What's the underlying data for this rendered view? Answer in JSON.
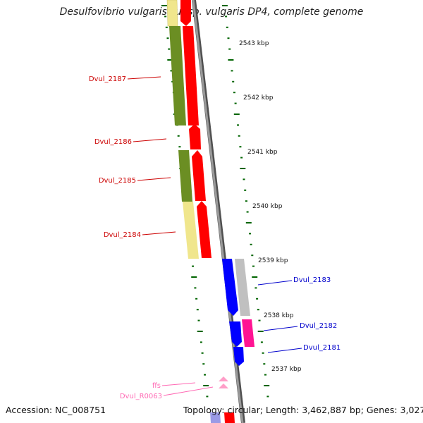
{
  "title": "Desulfovibrio vulgaris subsp. vulgaris DP4, complete genome",
  "footer": {
    "accession": "Accession: NC_008751",
    "topology": "Topology: circular; Length: 3,462,887 bp; Genes: 3,027"
  },
  "colors": {
    "forward_cds": "#ff0000",
    "reverse_cds": "#0000ff",
    "olive_feature": "#6b8e23",
    "khaki_feature": "#f0e68c",
    "grey_feature": "#b0b0b0",
    "magenta_feature": "#ff1493",
    "rna_feature": "#ff9ec8",
    "tick_green": "#006400",
    "backbone": "#808080"
  },
  "ticks": [
    "2543 kbp",
    "2542 kbp",
    "2541 kbp",
    "2540 kbp",
    "2539 kbp",
    "2538 kbp",
    "2537 kbp"
  ],
  "gene_labels": [
    {
      "text": "Dvul_2187",
      "color": "#cc0000"
    },
    {
      "text": "Dvul_2186",
      "color": "#cc0000"
    },
    {
      "text": "Dvul_2185",
      "color": "#cc0000"
    },
    {
      "text": "Dvul_2184",
      "color": "#cc0000"
    },
    {
      "text": "Dvul_2183",
      "color": "#0000cc"
    },
    {
      "text": "Dvul_2182",
      "color": "#0000cc"
    },
    {
      "text": "Dvul_2181",
      "color": "#0000cc"
    },
    {
      "text": "ffs",
      "color": "#ff69b4"
    },
    {
      "text": "Dvul_R0063",
      "color": "#ff69b4"
    }
  ]
}
